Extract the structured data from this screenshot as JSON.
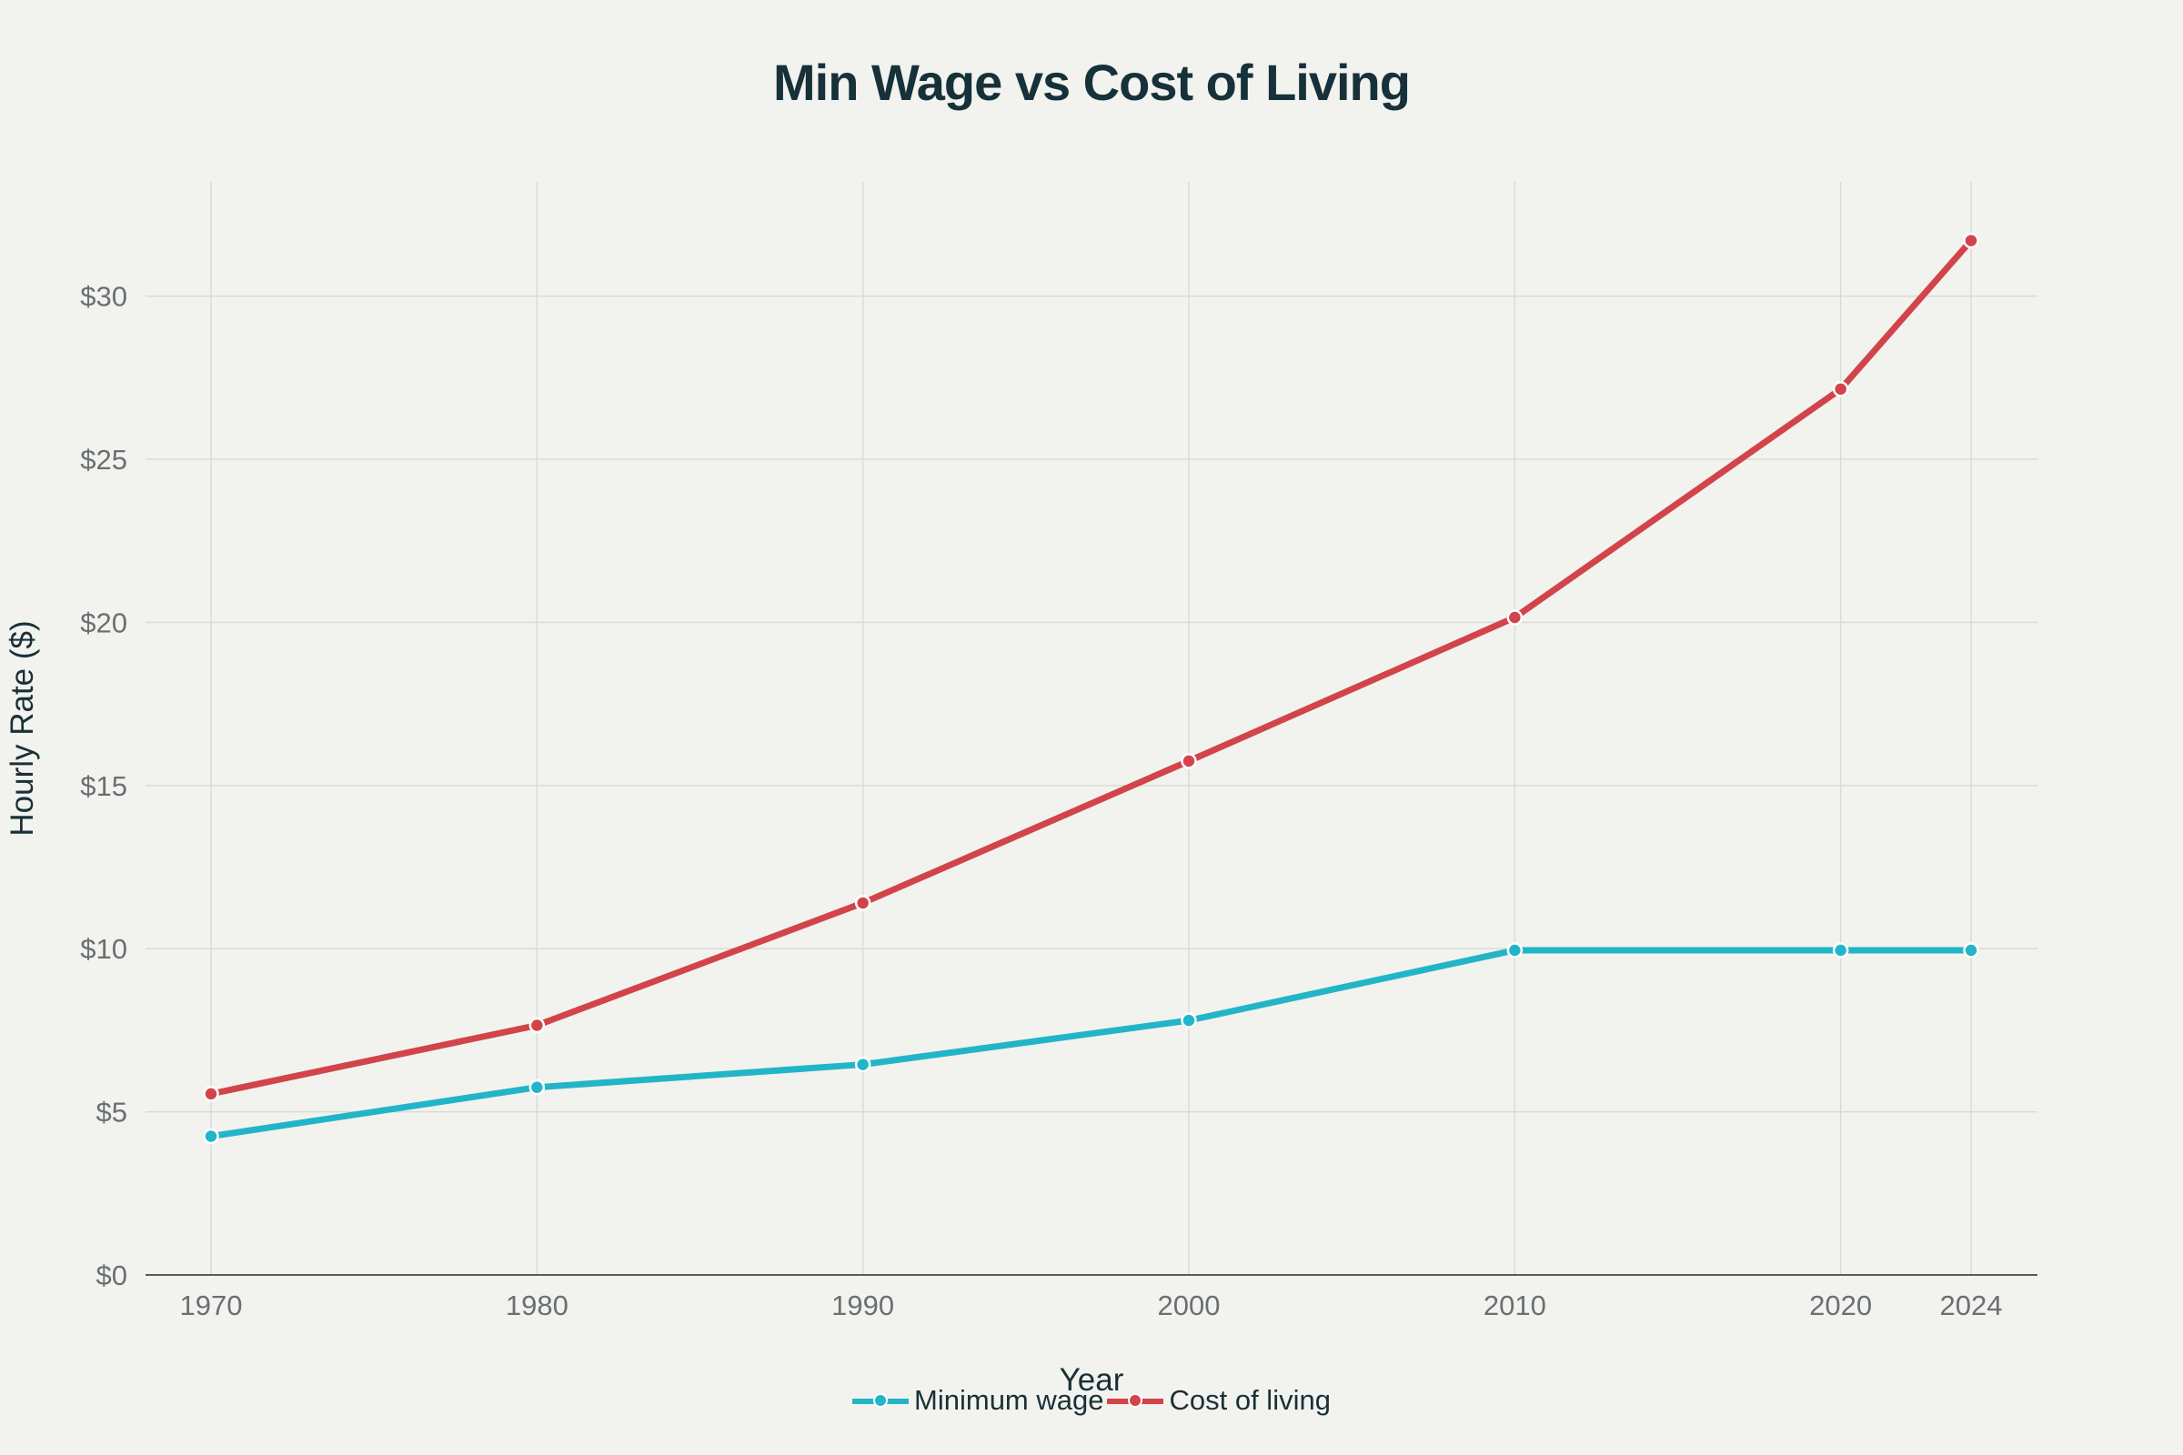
{
  "chart_data": {
    "type": "line",
    "title": "Min Wage vs Cost of Living",
    "xlabel": "Year",
    "ylabel": "Hourly Rate ($)",
    "x": [
      1970,
      1980,
      1990,
      2000,
      2010,
      2020,
      2024
    ],
    "xticks": [
      "1970",
      "1980",
      "1990",
      "2000",
      "2010",
      "2020",
      "2024"
    ],
    "yticks": [
      "$0",
      "$5",
      "$10",
      "$15",
      "$20",
      "$25",
      "$30"
    ],
    "ytick_values": [
      0,
      5,
      10,
      15,
      20,
      25,
      30
    ],
    "xlim": [
      1968,
      2026
    ],
    "ylim": [
      0,
      33.5
    ],
    "grid": true,
    "legend_position": "bottom-center",
    "series": [
      {
        "name": "Minimum wage",
        "color": "#22b5c8",
        "values": [
          4.25,
          5.75,
          6.45,
          7.8,
          9.95,
          9.95,
          9.95
        ]
      },
      {
        "name": "Cost of living",
        "color": "#d2444a",
        "values": [
          5.55,
          7.65,
          11.4,
          15.75,
          20.15,
          27.15,
          31.7
        ]
      }
    ]
  }
}
